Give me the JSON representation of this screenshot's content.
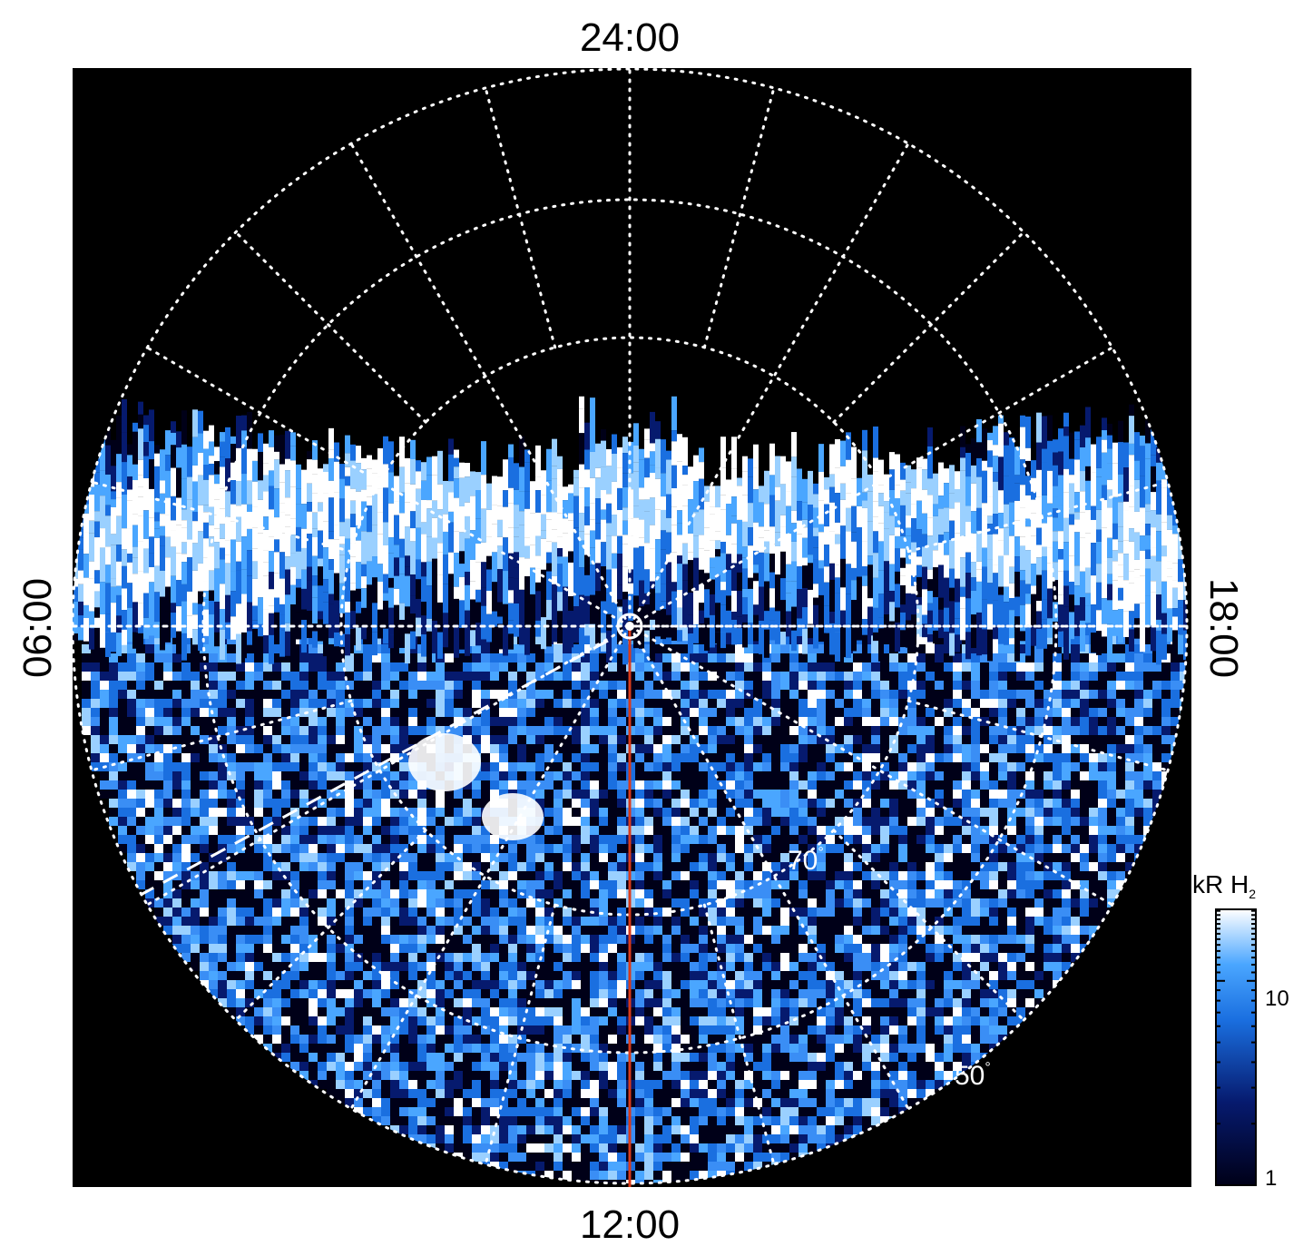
{
  "figure": {
    "local_time_labels": {
      "top": "24:00",
      "bottom": "12:00",
      "left": "06:00",
      "right": "18:00"
    },
    "latitude_labels": [
      {
        "text": "70",
        "unit": "°"
      },
      {
        "text": "50",
        "unit": "°"
      }
    ],
    "colorbar": {
      "title": "kR H",
      "title_subscript": "2",
      "scale": "log",
      "ticks": [
        "10",
        "1"
      ],
      "colors": {
        "low": "#000018",
        "mid_low": "#061a6e",
        "mid": "#1a6fe0",
        "mid_high": "#4aa6ff",
        "high": "#ffffff"
      }
    },
    "colors": {
      "background": "#000000",
      "grid": "#ffffff",
      "meridian_line": "#d93a1a",
      "dashed_line": "#ffffff"
    }
  }
}
